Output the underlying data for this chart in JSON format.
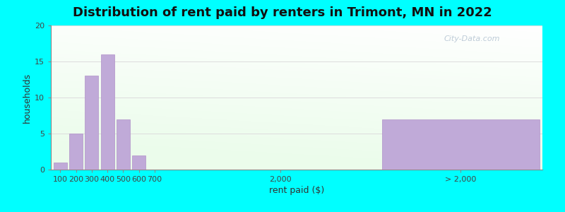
{
  "title": "Distribution of rent paid by renters in Trimont, MN in 2022",
  "xlabel": "rent paid ($)",
  "ylabel": "households",
  "background_outer": "#00FFFF",
  "bar_color": "#c0aad8",
  "bar_edge_color": "#b090c8",
  "ylim": [
    0,
    20
  ],
  "yticks": [
    0,
    5,
    10,
    15,
    20
  ],
  "bars_left": {
    "labels": [
      "100",
      "200",
      "300",
      "400",
      "500",
      "600",
      "700"
    ],
    "values": [
      1,
      5,
      13,
      16,
      7,
      2,
      0
    ]
  },
  "bar_gt2000": {
    "label": "> 2,000",
    "value": 7
  },
  "tick_2000_label": "2,000",
  "title_fontsize": 13,
  "axis_label_fontsize": 9,
  "tick_fontsize": 8,
  "watermark": "City-Data.com"
}
